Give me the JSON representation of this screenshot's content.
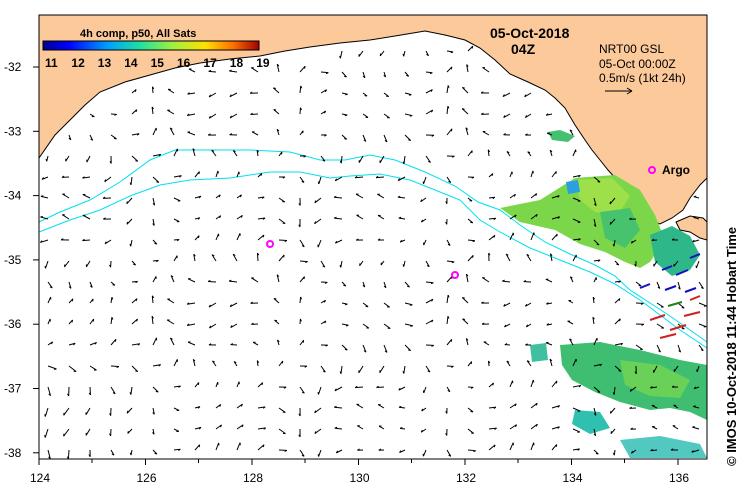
{
  "map": {
    "colorbar_title": "4h comp, p50, All Sats",
    "colorbar_ticks": [
      "11",
      "12",
      "13",
      "14",
      "15",
      "16",
      "17",
      "18",
      "19"
    ],
    "date": "05-Oct-2018",
    "time": "04Z",
    "product": "NRT00 GSL",
    "product_time": "05-Oct 00:00Z",
    "scale_text": "0.5m/s (1kt 24h)",
    "argo_label": "Argo",
    "credit": "© IMOS 10-Oct-2018 11:44 Hobart Time",
    "lon_ticks": [
      "124",
      "126",
      "128",
      "130",
      "132",
      "134",
      "136"
    ],
    "lat_ticks": [
      "-32",
      "-33",
      "-34",
      "-35",
      "-36",
      "-37",
      "-38"
    ],
    "land_color": "#fcc99a",
    "argo_color": "#ff00ff",
    "contour_color": "#00e0f0"
  }
}
